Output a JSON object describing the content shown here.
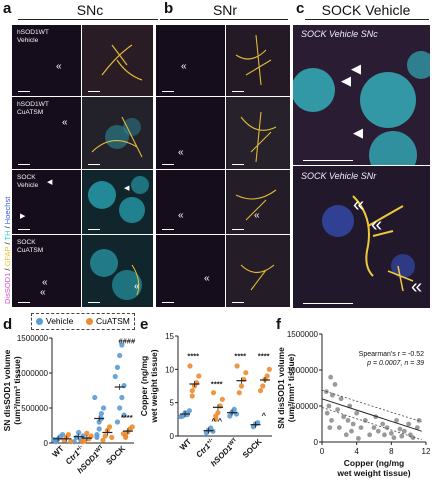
{
  "panels": {
    "a": {
      "letter": "a",
      "title": "SNc",
      "rows": [
        "hSOD1WT\nVehicle",
        "hSOD1WT\nCuATSM",
        "SOCK\nVehicle",
        "SOCK\nCuATSM"
      ]
    },
    "b": {
      "letter": "b",
      "title": "SNr"
    },
    "c": {
      "letter": "c",
      "title": "SOCK Vehicle",
      "top_label": "SOCK Vehicle SNc",
      "bottom_label": "SOCK Vehicle SNr"
    },
    "d": {
      "letter": "d"
    },
    "e": {
      "letter": "e"
    },
    "f": {
      "letter": "f"
    }
  },
  "stain_legend": [
    {
      "text": "DisSOD1",
      "color": "#d44bd4"
    },
    {
      "text": " / ",
      "color": "#222222"
    },
    {
      "text": "GFAP",
      "color": "#e8c12a"
    },
    {
      "text": " / ",
      "color": "#222222"
    },
    {
      "text": "TH",
      "color": "#2fc9d9"
    },
    {
      "text": " / ",
      "color": "#222222"
    },
    {
      "text": "Hoechst",
      "color": "#3a5bd9"
    }
  ],
  "legend": {
    "vehicle": "Vehicle",
    "cuatsm": "CuATSM",
    "vehicle_color": "#5b9bd5",
    "cuatsm_color": "#ed8b2f"
  },
  "chart_data": [
    {
      "id": "d",
      "type": "scatter",
      "ylabel": "SN disSOD1 volume\n(um³/mm³ tissue)",
      "ylim": [
        0,
        1500000
      ],
      "yticks": [
        "0",
        "500000",
        "1000000",
        "1500000"
      ],
      "categories": [
        "WT",
        "Ctr1+/-",
        "hSOD1WT",
        "SOCK"
      ],
      "series": [
        {
          "name": "Vehicle",
          "points": [
            [
              0,
              30000
            ],
            [
              0,
              60000
            ],
            [
              0,
              90000
            ],
            [
              0,
              120000
            ],
            [
              0,
              50000
            ],
            [
              0,
              20000
            ],
            [
              1,
              80000
            ],
            [
              1,
              150000
            ],
            [
              1,
              40000
            ],
            [
              1,
              100000
            ],
            [
              1,
              20000
            ],
            [
              2,
              120000
            ],
            [
              2,
              200000
            ],
            [
              2,
              350000
            ],
            [
              2,
              500000
            ],
            [
              2,
              650000
            ],
            [
              2,
              80000
            ],
            [
              2,
              300000
            ],
            [
              2,
              420000
            ],
            [
              3,
              300000
            ],
            [
              3,
              500000
            ],
            [
              3,
              650000
            ],
            [
              3,
              820000
            ],
            [
              3,
              950000
            ],
            [
              3,
              1080000
            ],
            [
              3,
              1250000
            ],
            [
              3,
              1400000
            ],
            [
              3,
              400000
            ]
          ],
          "means": [
            [
              0,
              60000
            ],
            [
              1,
              90000
            ],
            [
              2,
              350000
            ],
            [
              3,
              800000
            ]
          ]
        },
        {
          "name": "CuATSM",
          "points": [
            [
              0,
              40000
            ],
            [
              0,
              80000
            ],
            [
              0,
              120000
            ],
            [
              0,
              20000
            ],
            [
              1,
              30000
            ],
            [
              1,
              140000
            ],
            [
              1,
              60000
            ],
            [
              1,
              100000
            ],
            [
              1,
              20000
            ],
            [
              2,
              100000
            ],
            [
              2,
              180000
            ],
            [
              2,
              230000
            ],
            [
              2,
              80000
            ],
            [
              2,
              40000
            ],
            [
              3,
              100000
            ],
            [
              3,
              160000
            ],
            [
              3,
              200000
            ],
            [
              3,
              230000
            ],
            [
              3,
              130000
            ],
            [
              3,
              80000
            ]
          ],
          "means": [
            [
              0,
              60000
            ],
            [
              1,
              70000
            ],
            [
              2,
              150000
            ],
            [
              3,
              170000
            ]
          ]
        }
      ],
      "annotations": [
        {
          "cat": 3,
          "y": 1420000,
          "text": "####"
        },
        {
          "cat": 3,
          "y": 330000,
          "text": "****"
        }
      ]
    },
    {
      "id": "e",
      "type": "scatter",
      "ylabel": "Copper (ng/mg\nwet weight tissue)",
      "ylim": [
        0,
        15
      ],
      "yticks": [
        "0",
        "5",
        "10",
        "15"
      ],
      "categories": [
        "WT",
        "Ctr1+/-",
        "hSOD1WT",
        "SOCK"
      ],
      "series": [
        {
          "name": "Vehicle",
          "points": [
            [
              0,
              3.0
            ],
            [
              0,
              3.5
            ],
            [
              0,
              3.2
            ],
            [
              0,
              3.8
            ],
            [
              0,
              2.9
            ],
            [
              1,
              0.5
            ],
            [
              1,
              0.9
            ],
            [
              1,
              1.2
            ],
            [
              1,
              0.7
            ],
            [
              2,
              3.0
            ],
            [
              2,
              3.6
            ],
            [
              2,
              4.0
            ],
            [
              2,
              3.3
            ],
            [
              3,
              1.4
            ],
            [
              3,
              1.8
            ],
            [
              3,
              2.0
            ]
          ],
          "means": [
            [
              0,
              3.3
            ],
            [
              1,
              0.8
            ],
            [
              2,
              3.5
            ],
            [
              3,
              1.7
            ]
          ]
        },
        {
          "name": "CuATSM",
          "points": [
            [
              0,
              6.0
            ],
            [
              0,
              7.5
            ],
            [
              0,
              8.0
            ],
            [
              0,
              9.0
            ],
            [
              0,
              10.5
            ],
            [
              0,
              6.8
            ],
            [
              1,
              2.5
            ],
            [
              1,
              3.5
            ],
            [
              1,
              4.5
            ],
            [
              1,
              5.5
            ],
            [
              1,
              6.5
            ],
            [
              1,
              3.0
            ],
            [
              2,
              6.5
            ],
            [
              2,
              7.5
            ],
            [
              2,
              8.5
            ],
            [
              2,
              9.5
            ],
            [
              2,
              10.5
            ],
            [
              3,
              7.5
            ],
            [
              3,
              8.5
            ],
            [
              3,
              9.0
            ],
            [
              3,
              10.0
            ],
            [
              3,
              6.8
            ]
          ],
          "means": [
            [
              0,
              7.8
            ],
            [
              1,
              4.3
            ],
            [
              2,
              8.3
            ],
            [
              3,
              8.4
            ]
          ]
        }
      ],
      "annotations": [
        {
          "cat": 0,
          "y": 11.6,
          "text": "****"
        },
        {
          "cat": 1,
          "y": 7.4,
          "text": "****"
        },
        {
          "cat": 2,
          "y": 11.6,
          "text": "****"
        },
        {
          "cat": 3,
          "y": 11.6,
          "text": "****"
        },
        {
          "cat": 1,
          "y": 1.9,
          "text": "^ ^"
        },
        {
          "cat": 3,
          "y": 2.7,
          "text": "^"
        }
      ]
    },
    {
      "id": "f",
      "type": "scatter",
      "xlabel": "Copper (ng/mg\nwet weight tissue)",
      "ylabel": "SN disSOD1 volume\n(um³/mm³ tissue)",
      "xlim": [
        0,
        12
      ],
      "ylim": [
        0,
        1500000
      ],
      "xticks": [
        "0",
        "4",
        "8",
        "12"
      ],
      "yticks": [
        "0",
        "500000",
        "1000000",
        "1500000"
      ],
      "stat_lines": [
        "Spearman's r = -0.52",
        "p = 0.0007, n = 39"
      ],
      "points": [
        [
          0.5,
          700000
        ],
        [
          0.6,
          400000
        ],
        [
          0.8,
          500000
        ],
        [
          0.9,
          200000
        ],
        [
          1.0,
          900000
        ],
        [
          1.1,
          300000
        ],
        [
          1.2,
          650000
        ],
        [
          1.5,
          800000
        ],
        [
          1.8,
          450000
        ],
        [
          2.0,
          200000
        ],
        [
          2.2,
          600000
        ],
        [
          2.5,
          350000
        ],
        [
          2.8,
          100000
        ],
        [
          3.0,
          300000
        ],
        [
          3.2,
          500000
        ],
        [
          3.4,
          150000
        ],
        [
          3.6,
          250000
        ],
        [
          4.0,
          400000
        ],
        [
          4.2,
          50000
        ],
        [
          4.5,
          200000
        ],
        [
          5.0,
          300000
        ],
        [
          5.5,
          100000
        ],
        [
          6.0,
          200000
        ],
        [
          6.2,
          350000
        ],
        [
          6.5,
          150000
        ],
        [
          7.0,
          250000
        ],
        [
          7.2,
          100000
        ],
        [
          7.5,
          200000
        ],
        [
          8.0,
          120000
        ],
        [
          8.3,
          60000
        ],
        [
          8.6,
          300000
        ],
        [
          9.0,
          180000
        ],
        [
          9.2,
          80000
        ],
        [
          9.5,
          150000
        ],
        [
          10.0,
          250000
        ],
        [
          10.2,
          100000
        ],
        [
          10.5,
          60000
        ],
        [
          11.0,
          200000
        ],
        [
          11.2,
          300000
        ]
      ],
      "fit": [
        [
          0,
          600000
        ],
        [
          11.5,
          150000
        ]
      ],
      "ci_upper": [
        [
          0,
          720000
        ],
        [
          11.5,
          280000
        ]
      ],
      "ci_lower": [
        [
          0,
          480000
        ],
        [
          11.5,
          30000
        ]
      ]
    }
  ]
}
